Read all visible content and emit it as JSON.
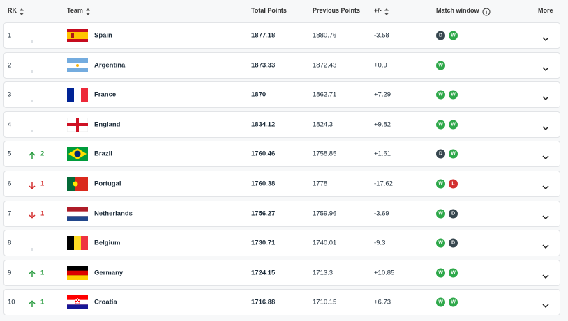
{
  "header": {
    "columns": [
      "RK",
      "Team",
      "Total Points",
      "Previous Points",
      "+/-",
      "Match window",
      "More"
    ]
  },
  "table": {
    "rows": [
      {
        "rank": "1",
        "movement": null,
        "team": "Spain",
        "total": "1877.18",
        "previous": "1880.76",
        "diff": "-3.58",
        "results": [
          {
            "label": "D",
            "color": "#37474f"
          },
          {
            "label": "W",
            "color": "#2ea84a"
          }
        ]
      },
      {
        "rank": "2",
        "movement": null,
        "team": "Argentina",
        "total": "1873.33",
        "previous": "1872.43",
        "diff": "+0.9",
        "results": [
          {
            "label": "W",
            "color": "#2ea84a"
          }
        ]
      },
      {
        "rank": "3",
        "movement": null,
        "team": "France",
        "total": "1870",
        "previous": "1862.71",
        "diff": "+7.29",
        "results": [
          {
            "label": "W",
            "color": "#2ea84a"
          },
          {
            "label": "W",
            "color": "#2ea84a"
          }
        ]
      },
      {
        "rank": "4",
        "movement": null,
        "team": "England",
        "total": "1834.12",
        "previous": "1824.3",
        "diff": "+9.82",
        "results": [
          {
            "label": "W",
            "color": "#2ea84a"
          },
          {
            "label": "W",
            "color": "#2ea84a"
          }
        ]
      },
      {
        "rank": "5",
        "movement": {
          "dir": "up",
          "value": "2",
          "color": "#2e9e44"
        },
        "team": "Brazil",
        "total": "1760.46",
        "previous": "1758.85",
        "diff": "+1.61",
        "results": [
          {
            "label": "D",
            "color": "#37474f"
          },
          {
            "label": "W",
            "color": "#2ea84a"
          }
        ]
      },
      {
        "rank": "6",
        "movement": {
          "dir": "down",
          "value": "1",
          "color": "#d32f2f"
        },
        "team": "Portugal",
        "total": "1760.38",
        "previous": "1778",
        "diff": "-17.62",
        "results": [
          {
            "label": "W",
            "color": "#2ea84a"
          },
          {
            "label": "L",
            "color": "#d32f2f"
          }
        ]
      },
      {
        "rank": "7",
        "movement": {
          "dir": "down",
          "value": "1",
          "color": "#d32f2f"
        },
        "team": "Netherlands",
        "total": "1756.27",
        "previous": "1759.96",
        "diff": "-3.69",
        "results": [
          {
            "label": "W",
            "color": "#2ea84a"
          },
          {
            "label": "D",
            "color": "#37474f"
          }
        ]
      },
      {
        "rank": "8",
        "movement": null,
        "team": "Belgium",
        "total": "1730.71",
        "previous": "1740.01",
        "diff": "-9.3",
        "results": [
          {
            "label": "W",
            "color": "#2ea84a"
          },
          {
            "label": "D",
            "color": "#37474f"
          }
        ]
      },
      {
        "rank": "9",
        "movement": {
          "dir": "up",
          "value": "1",
          "color": "#2e9e44"
        },
        "team": "Germany",
        "total": "1724.15",
        "previous": "1713.3",
        "diff": "+10.85",
        "results": [
          {
            "label": "W",
            "color": "#2ea84a"
          },
          {
            "label": "W",
            "color": "#2ea84a"
          }
        ]
      },
      {
        "rank": "10",
        "movement": {
          "dir": "up",
          "value": "1",
          "color": "#2e9e44"
        },
        "team": "Croatia",
        "total": "1716.88",
        "previous": "1710.15",
        "diff": "+6.73",
        "results": [
          {
            "label": "W",
            "color": "#2ea84a"
          },
          {
            "label": "W",
            "color": "#2ea84a"
          }
        ]
      }
    ]
  }
}
